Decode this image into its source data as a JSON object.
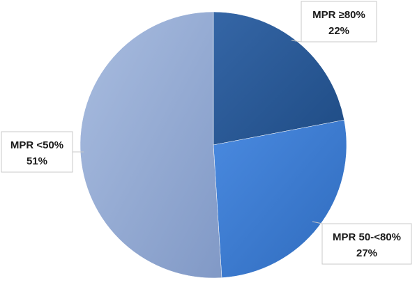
{
  "chart_data": {
    "type": "pie",
    "title": "",
    "slices": [
      {
        "label": "MPR ≥80%",
        "value": 22,
        "value_label": "22%",
        "color": "#2b5a96"
      },
      {
        "label": "MPR 50-<80%",
        "value": 27,
        "value_label": "27%",
        "color": "#3f7ed0"
      },
      {
        "label": "MPR <50%",
        "value": 51,
        "value_label": "51%",
        "color": "#93aad5"
      }
    ],
    "start_angle": "12 o'clock",
    "direction": "clockwise",
    "data_labels": "callouts",
    "legend": "none"
  }
}
